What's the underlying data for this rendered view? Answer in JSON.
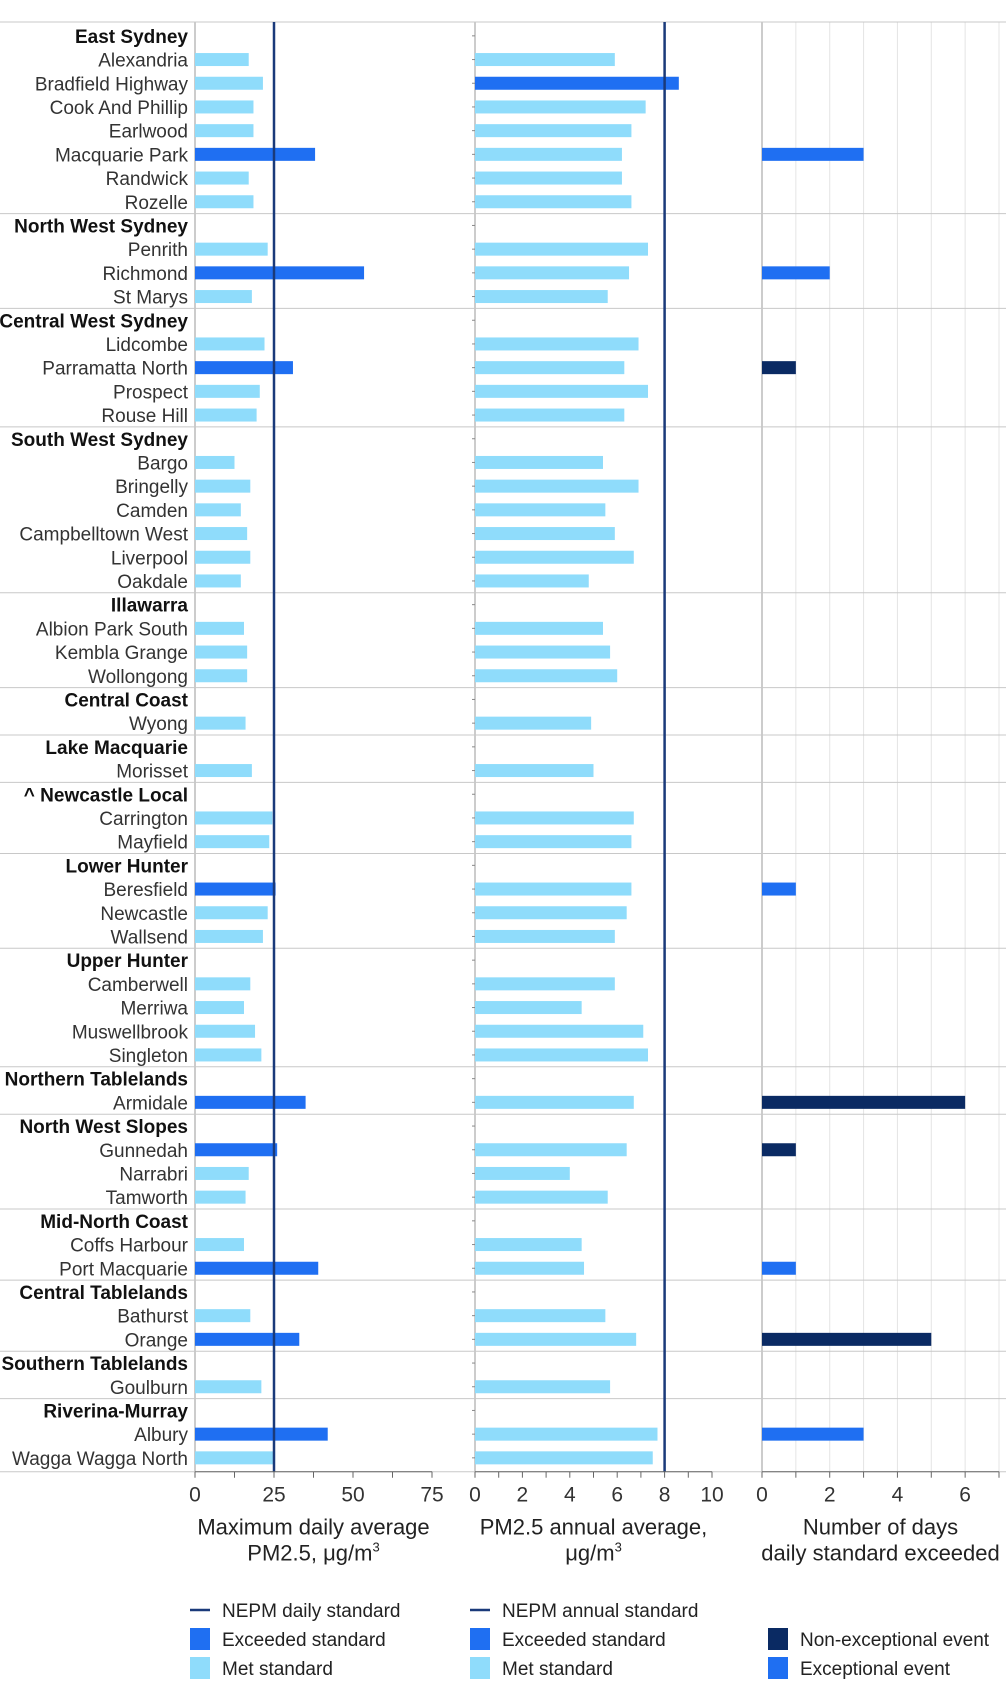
{
  "chart_data": {
    "type": "bar",
    "orientation": "horizontal",
    "rows": [
      {
        "label": "East Sydney",
        "region": true
      },
      {
        "label": "Alexandria",
        "max_daily": 17,
        "max_status": "met",
        "annual": 5.9,
        "days": 0
      },
      {
        "label": "Bradfield Highway",
        "max_daily": 21.5,
        "max_status": "met",
        "annual": 8.6,
        "annual_status": "exceeded",
        "days": 0
      },
      {
        "label": "Cook And Phillip",
        "max_daily": 18.5,
        "max_status": "met",
        "annual": 7.2,
        "days": 0
      },
      {
        "label": "Earlwood",
        "max_daily": 18.5,
        "max_status": "met",
        "annual": 6.6,
        "days": 0
      },
      {
        "label": "Macquarie Park",
        "max_daily": 38,
        "max_status": "exceeded",
        "annual": 6.2,
        "days": 3,
        "days_type": "exceptional"
      },
      {
        "label": "Randwick",
        "max_daily": 17,
        "max_status": "met",
        "annual": 6.2,
        "days": 0
      },
      {
        "label": "Rozelle",
        "max_daily": 18.5,
        "max_status": "met",
        "annual": 6.6,
        "days": 0
      },
      {
        "label": "North West Sydney",
        "region": true
      },
      {
        "label": "Penrith",
        "max_daily": 23,
        "max_status": "met",
        "annual": 7.3,
        "days": 0
      },
      {
        "label": "Richmond",
        "max_daily": 53.5,
        "max_status": "exceeded",
        "annual": 6.5,
        "days": 2,
        "days_type": "exceptional"
      },
      {
        "label": "St Marys",
        "max_daily": 18,
        "max_status": "met",
        "annual": 5.6,
        "days": 0
      },
      {
        "label": "Central West Sydney",
        "region": true
      },
      {
        "label": "Lidcombe",
        "max_daily": 22,
        "max_status": "met",
        "annual": 6.9,
        "days": 0
      },
      {
        "label": "Parramatta North",
        "max_daily": 31,
        "max_status": "exceeded",
        "annual": 6.3,
        "days": 1,
        "days_type": "non-exceptional"
      },
      {
        "label": "Prospect",
        "max_daily": 20.5,
        "max_status": "met",
        "annual": 7.3,
        "days": 0
      },
      {
        "label": "Rouse Hill",
        "max_daily": 19.5,
        "max_status": "met",
        "annual": 6.3,
        "days": 0
      },
      {
        "label": "South West Sydney",
        "region": true
      },
      {
        "label": "Bargo",
        "max_daily": 12.5,
        "max_status": "met",
        "annual": 5.4,
        "days": 0
      },
      {
        "label": "Bringelly",
        "max_daily": 17.5,
        "max_status": "met",
        "annual": 6.9,
        "days": 0
      },
      {
        "label": "Camden",
        "max_daily": 14.5,
        "max_status": "met",
        "annual": 5.5,
        "days": 0
      },
      {
        "label": "Campbelltown West",
        "max_daily": 16.5,
        "max_status": "met",
        "annual": 5.9,
        "days": 0
      },
      {
        "label": "Liverpool",
        "max_daily": 17.5,
        "max_status": "met",
        "annual": 6.7,
        "days": 0
      },
      {
        "label": "Oakdale",
        "max_daily": 14.5,
        "max_status": "met",
        "annual": 4.8,
        "days": 0
      },
      {
        "label": "Illawarra",
        "region": true
      },
      {
        "label": "Albion Park South",
        "max_daily": 15.5,
        "max_status": "met",
        "annual": 5.4,
        "days": 0
      },
      {
        "label": "Kembla Grange",
        "max_daily": 16.5,
        "max_status": "met",
        "annual": 5.7,
        "days": 0
      },
      {
        "label": "Wollongong",
        "max_daily": 16.5,
        "max_status": "met",
        "annual": 6.0,
        "days": 0
      },
      {
        "label": "Central Coast",
        "region": true
      },
      {
        "label": "Wyong",
        "max_daily": 16,
        "max_status": "met",
        "annual": 4.9,
        "days": 0
      },
      {
        "label": "Lake Macquarie",
        "region": true
      },
      {
        "label": "Morisset",
        "max_daily": 18,
        "max_status": "met",
        "annual": 5.0,
        "days": 0
      },
      {
        "label": "^ Newcastle Local",
        "region": true
      },
      {
        "label": "Carrington",
        "max_daily": 24.5,
        "max_status": "met",
        "annual": 6.7,
        "days": 0
      },
      {
        "label": "Mayfield",
        "max_daily": 23.5,
        "max_status": "met",
        "annual": 6.6,
        "days": 0
      },
      {
        "label": "Lower Hunter",
        "region": true
      },
      {
        "label": "Beresfield",
        "max_daily": 25.5,
        "max_status": "exceeded",
        "annual": 6.6,
        "days": 1,
        "days_type": "exceptional"
      },
      {
        "label": "Newcastle",
        "max_daily": 23,
        "max_status": "met",
        "annual": 6.4,
        "days": 0
      },
      {
        "label": "Wallsend",
        "max_daily": 21.5,
        "max_status": "met",
        "annual": 5.9,
        "days": 0
      },
      {
        "label": "Upper Hunter",
        "region": true
      },
      {
        "label": "Camberwell",
        "max_daily": 17.5,
        "max_status": "met",
        "annual": 5.9,
        "days": 0
      },
      {
        "label": "Merriwa",
        "max_daily": 15.5,
        "max_status": "met",
        "annual": 4.5,
        "days": 0
      },
      {
        "label": "Muswellbrook",
        "max_daily": 19,
        "max_status": "met",
        "annual": 7.1,
        "days": 0
      },
      {
        "label": "Singleton",
        "max_daily": 21,
        "max_status": "met",
        "annual": 7.3,
        "days": 0
      },
      {
        "label": "Northern Tablelands",
        "region": true
      },
      {
        "label": "Armidale",
        "max_daily": 35,
        "max_status": "exceeded",
        "annual": 6.7,
        "days": 6,
        "days_type": "non-exceptional"
      },
      {
        "label": "North West Slopes",
        "region": true
      },
      {
        "label": "Gunnedah",
        "max_daily": 26,
        "max_status": "exceeded",
        "annual": 6.4,
        "days": 1,
        "days_type": "non-exceptional"
      },
      {
        "label": "Narrabri",
        "max_daily": 17,
        "max_status": "met",
        "annual": 4.0,
        "days": 0
      },
      {
        "label": "Tamworth",
        "max_daily": 16,
        "max_status": "met",
        "annual": 5.6,
        "days": 0
      },
      {
        "label": "Mid-North Coast",
        "region": true
      },
      {
        "label": "Coffs Harbour",
        "max_daily": 15.5,
        "max_status": "met",
        "annual": 4.5,
        "days": 0
      },
      {
        "label": "Port Macquarie",
        "max_daily": 39,
        "max_status": "exceeded",
        "annual": 4.6,
        "days": 1,
        "days_type": "exceptional"
      },
      {
        "label": "Central Tablelands",
        "region": true
      },
      {
        "label": "Bathurst",
        "max_daily": 17.5,
        "max_status": "met",
        "annual": 5.5,
        "days": 0
      },
      {
        "label": "Orange",
        "max_daily": 33,
        "max_status": "exceeded",
        "annual": 6.8,
        "days": 5,
        "days_type": "non-exceptional"
      },
      {
        "label": "Southern Tablelands",
        "region": true
      },
      {
        "label": "Goulburn",
        "max_daily": 21,
        "max_status": "met",
        "annual": 5.7,
        "days": 0
      },
      {
        "label": "Riverina-Murray",
        "region": true
      },
      {
        "label": "Albury",
        "max_daily": 42,
        "max_status": "exceeded",
        "annual": 7.7,
        "days": 3,
        "days_type": "exceptional"
      },
      {
        "label": "Wagga Wagga North",
        "max_daily": 25,
        "max_status": "met",
        "annual": 7.5,
        "days": 0
      }
    ],
    "region_boundaries_after": [
      "Rozelle",
      "St Marys",
      "Rouse Hill",
      "Oakdale",
      "Wollongong",
      "Wyong",
      "Morisset",
      "Mayfield",
      "Wallsend",
      "Singleton",
      "Armidale",
      "Tamworth",
      "Port Macquarie",
      "Orange",
      "Goulburn"
    ],
    "panels": [
      {
        "key": "max_daily",
        "xlim": [
          0,
          75
        ],
        "ticks": [
          0,
          25,
          50,
          75
        ],
        "minor_step": 12.5,
        "standard": 25,
        "xlabel_lines": [
          "Maximum daily average",
          "PM2.5, μg/m",
          "3"
        ]
      },
      {
        "key": "annual",
        "xlim": [
          0,
          10
        ],
        "ticks": [
          0,
          2,
          4,
          6,
          8,
          10
        ],
        "minor_step": 1,
        "standard": 8,
        "xlabel_lines": [
          "PM2.5 annual average,",
          "μg/m",
          "3"
        ]
      },
      {
        "key": "days",
        "xlim": [
          0,
          7
        ],
        "ticks": [
          0,
          2,
          4,
          6
        ],
        "minor_step": 1,
        "grid": true,
        "xlabel_lines": [
          "Number of days",
          "daily standard exceeded"
        ]
      }
    ],
    "legends": [
      {
        "items": [
          {
            "kind": "line",
            "label": "NEPM daily standard",
            "color": "#1a3a7a"
          },
          {
            "kind": "box",
            "label": "Exceeded standard",
            "color": "#1f6ff2"
          },
          {
            "kind": "box",
            "label": "Met standard",
            "color": "#8fdcfb"
          }
        ]
      },
      {
        "items": [
          {
            "kind": "line",
            "label": "NEPM annual standard",
            "color": "#1a3a7a"
          },
          {
            "kind": "box",
            "label": "Exceeded standard",
            "color": "#1f6ff2"
          },
          {
            "kind": "box",
            "label": "Met standard",
            "color": "#8fdcfb"
          }
        ]
      },
      {
        "items": [
          {
            "kind": "box",
            "label": "Non-exceptional event",
            "color": "#0a2a63"
          },
          {
            "kind": "box",
            "label": "Exceptional event",
            "color": "#1f6ff2"
          }
        ]
      }
    ],
    "colors": {
      "met": "#8fdcfb",
      "exceeded": "#1f6ff2",
      "exceptional": "#1f6ff2",
      "non_exceptional": "#0a2a63",
      "standard_line": "#1a3a7a",
      "divider": "#c8c8c8",
      "grid": "#e4e4e4"
    }
  }
}
